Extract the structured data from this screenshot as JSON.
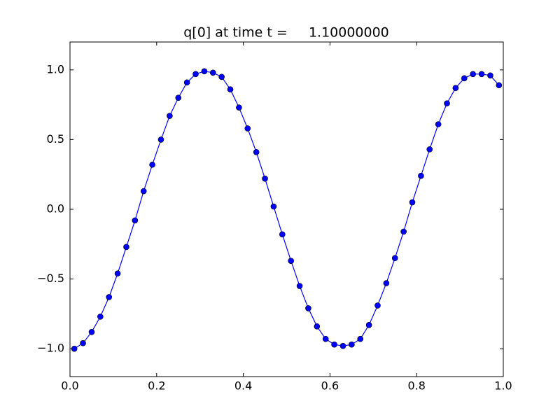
{
  "chart_data": {
    "type": "line",
    "title": "q[0] at time t =     1.10000000",
    "x": [
      0.01,
      0.03,
      0.05,
      0.07,
      0.09,
      0.11,
      0.13,
      0.15,
      0.17,
      0.19,
      0.21,
      0.23,
      0.25,
      0.27,
      0.29,
      0.31,
      0.33,
      0.35,
      0.37,
      0.39,
      0.41,
      0.43,
      0.45,
      0.47,
      0.49,
      0.51,
      0.53,
      0.55,
      0.57,
      0.59,
      0.61,
      0.63,
      0.65,
      0.67,
      0.69,
      0.71,
      0.73,
      0.75,
      0.77,
      0.79,
      0.81,
      0.83,
      0.85,
      0.87,
      0.89,
      0.91,
      0.93,
      0.95,
      0.97,
      0.99
    ],
    "series": [
      {
        "color": "#0000ff",
        "values": [
          -1.0,
          -0.96,
          -0.88,
          -0.77,
          -0.63,
          -0.46,
          -0.27,
          -0.08,
          0.13,
          0.32,
          0.5,
          0.67,
          0.8,
          0.91,
          0.97,
          0.99,
          0.98,
          0.95,
          0.86,
          0.73,
          0.58,
          0.41,
          0.22,
          0.02,
          -0.18,
          -0.37,
          -0.55,
          -0.71,
          -0.84,
          -0.93,
          -0.97,
          -0.98,
          -0.97,
          -0.93,
          -0.83,
          -0.69,
          -0.53,
          -0.35,
          -0.16,
          0.05,
          0.24,
          0.43,
          0.61,
          0.76,
          0.87,
          0.94,
          0.97,
          0.97,
          0.96,
          0.89
        ]
      }
    ],
    "xlim": [
      0,
      1
    ],
    "ylim": [
      -1.2,
      1.2
    ],
    "xticks": [
      {
        "value": 0,
        "label": "0.0"
      },
      0.2,
      0.4,
      0.6,
      0.8,
      {
        "value": 1,
        "label": "1.0"
      }
    ],
    "yticks": [
      {
        "value": -1,
        "label": "−1.0"
      },
      {
        "value": -0.5,
        "label": "−0.5"
      },
      {
        "value": 0,
        "label": "0.0"
      },
      0.5,
      {
        "value": 1,
        "label": "1.0"
      }
    ],
    "grid": false
  }
}
